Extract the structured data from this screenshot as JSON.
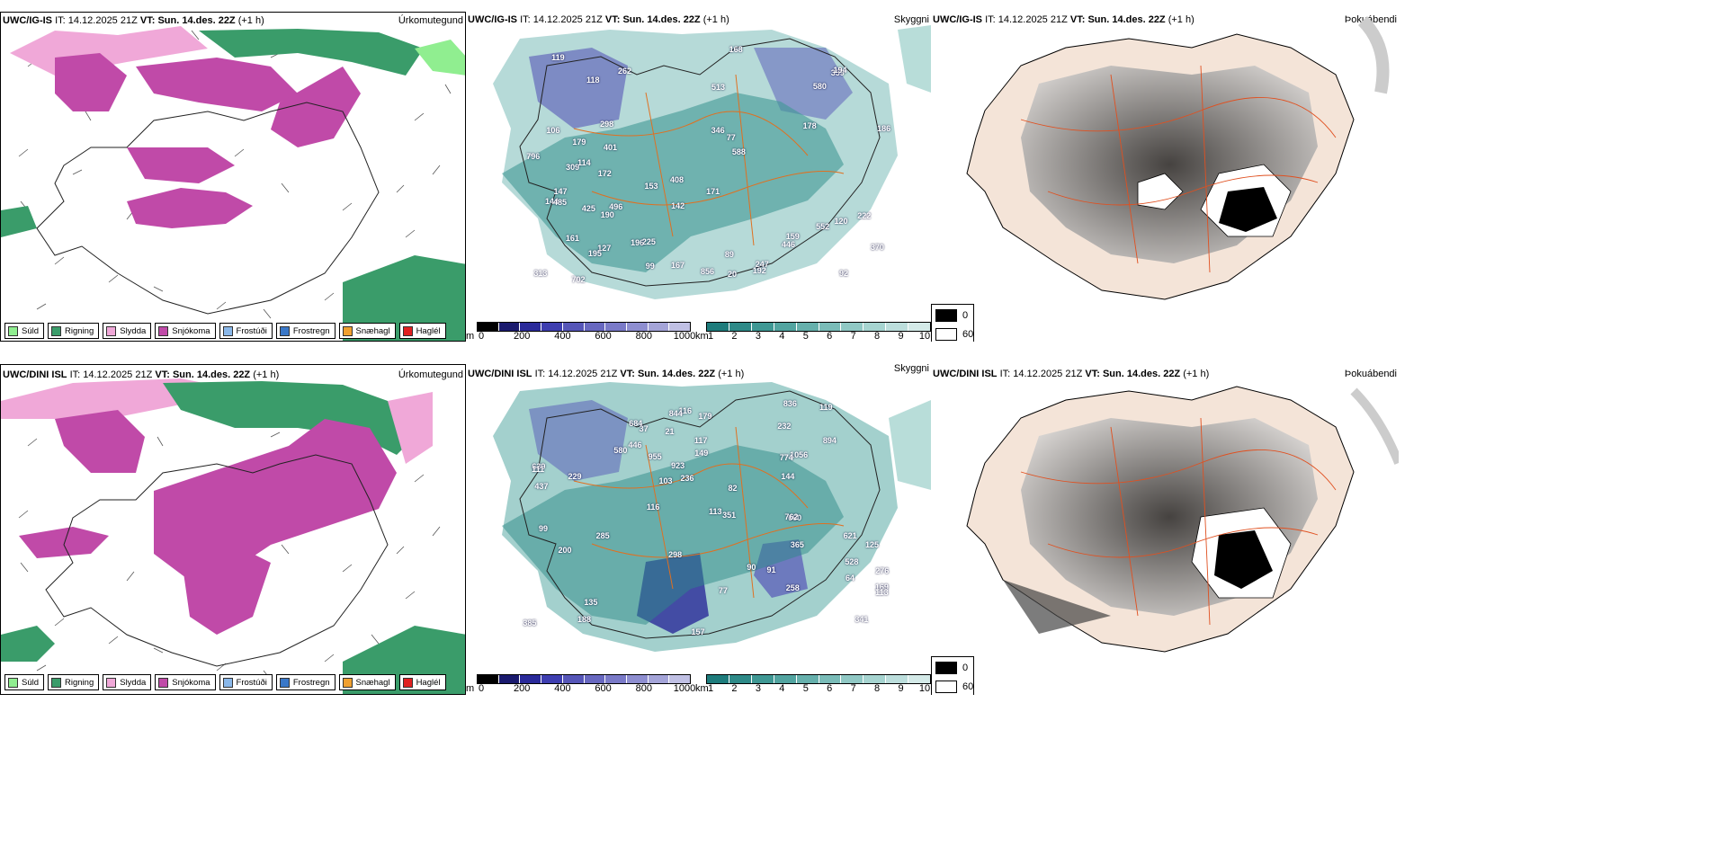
{
  "panels": {
    "p1": {
      "model": "UWC/IG-IS",
      "it_label": "IT:",
      "it": "14.12.2025 21Z",
      "vt_label": "VT:",
      "vt": "Sun. 14.des. 22Z",
      "lead": "(+1 h)",
      "title": "Úrkomutegund"
    },
    "p2": {
      "model": "UWC/IG-IS",
      "it_label": "IT:",
      "it": "14.12.2025 21Z",
      "vt_label": "VT:",
      "vt": "Sun. 14.des. 22Z",
      "lead": "(+1 h)",
      "title": "Skyggni"
    },
    "p3": {
      "model": "UWC/IG-IS",
      "it_label": "IT:",
      "it": "14.12.2025 21Z",
      "vt_label": "VT:",
      "vt": "Sun. 14.des. 22Z",
      "lead": "(+1 h)",
      "title": "Þokuábendi"
    },
    "p4": {
      "model": "UWC/DINI ISL",
      "it_label": "IT:",
      "it": "14.12.2025 21Z",
      "vt_label": "VT:",
      "vt": "Sun. 14.des. 22Z",
      "lead": "(+1 h)",
      "title": "Úrkomutegund"
    },
    "p5": {
      "model": "UWC/DINI ISL",
      "it_label": "IT:",
      "it": "14.12.2025 21Z",
      "vt_label": "VT:",
      "vt": "Sun. 14.des. 22Z",
      "lead": "(+1 h)",
      "title": "Skyggni"
    },
    "p6": {
      "model": "UWC/DINI ISL",
      "it_label": "IT:",
      "it": "14.12.2025 21Z",
      "vt_label": "VT:",
      "vt": "Sun. 14.des. 22Z",
      "lead": "(+1 h)",
      "title": "Þokuábendi"
    }
  },
  "precip_legend": [
    {
      "label": "Súld",
      "color": "#90ee90"
    },
    {
      "label": "Rigning",
      "color": "#3a9c6a"
    },
    {
      "label": "Slydda",
      "color": "#f0a8d8"
    },
    {
      "label": "Snjókoma",
      "color": "#c04aa8"
    },
    {
      "label": "Frostúði",
      "color": "#8ab8ea"
    },
    {
      "label": "Frostregn",
      "color": "#3a78c8"
    },
    {
      "label": "Snæhagl",
      "color": "#f0a030"
    },
    {
      "label": "Haglél",
      "color": "#e02020"
    }
  ],
  "colorbar_m": {
    "unit": "m",
    "ticks": [
      "0",
      "200",
      "400",
      "600",
      "800",
      "1000"
    ],
    "colors": [
      "#000000",
      "#1a1a6e",
      "#2a2a9a",
      "#3e3eb0",
      "#5656b8",
      "#6868c0",
      "#7a7ac8",
      "#8e8ed0",
      "#a4a4d8",
      "#c0c0e4"
    ]
  },
  "colorbar_km": {
    "unit": "km",
    "ticks": [
      "1",
      "2",
      "3",
      "4",
      "5",
      "6",
      "7",
      "8",
      "9",
      "10"
    ],
    "colors": [
      "#1e7c7c",
      "#2e8a88",
      "#3f9894",
      "#52a4a0",
      "#66b0ac",
      "#7abcb8",
      "#90c8c4",
      "#a6d4d0",
      "#bcdedc",
      "#d4eae8"
    ]
  },
  "fog_legend": [
    {
      "label": "0",
      "color": "#000000"
    },
    {
      "label": "60",
      "color": "#ffffff"
    }
  ],
  "visibility_labels_top": [
    "120",
    "172",
    "161",
    "446",
    "127",
    "196",
    "99",
    "147",
    "179",
    "106",
    "118",
    "370",
    "401",
    "552",
    "309",
    "114",
    "225",
    "222",
    "195",
    "144",
    "159",
    "247",
    "153",
    "359",
    "92",
    "856",
    "192",
    "298",
    "194",
    "142",
    "186",
    "178",
    "171",
    "346",
    "168",
    "262",
    "425",
    "588",
    "796",
    "496",
    "702",
    "119",
    "485",
    "20",
    "580",
    "313",
    "190",
    "513",
    "167",
    "408",
    "77",
    "89"
  ],
  "visibility_labels_bottom": [
    "157",
    "232",
    "149",
    "91",
    "125",
    "229",
    "37",
    "1056",
    "200",
    "660",
    "923",
    "762",
    "580",
    "684",
    "955",
    "285",
    "836",
    "446",
    "341",
    "437",
    "528",
    "365",
    "351",
    "179",
    "385",
    "90",
    "298",
    "639",
    "82",
    "169",
    "188",
    "258",
    "77",
    "774",
    "236",
    "116",
    "99",
    "111",
    "113",
    "117",
    "119",
    "113",
    "116",
    "135",
    "103",
    "276",
    "21",
    "64",
    "144",
    "894",
    "844",
    "621"
  ]
}
